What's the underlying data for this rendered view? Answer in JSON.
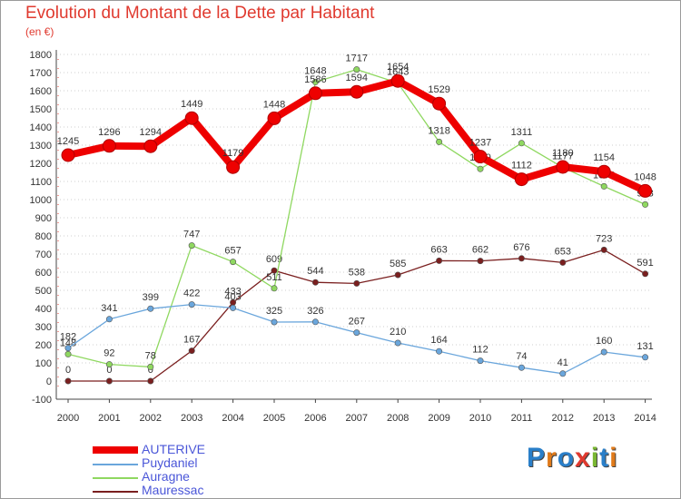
{
  "title": "Evolution du Montant de la Dette par Habitant",
  "unit_label": "(en €)",
  "logo": "Proxiti",
  "colors": {
    "title": "#e03a2f",
    "legend_text": "#4a56d8",
    "axis": "#444444",
    "grid": "#cfcfcf",
    "logo_letters": [
      "#2a7fc9",
      "#e07a1a",
      "#2a7fc9",
      "#e03a2f",
      "#7ab733",
      "#2a7fc9",
      "#e07a1a"
    ]
  },
  "chart_data": {
    "type": "line",
    "x": [
      "2000",
      "2001",
      "2002",
      "2003",
      "2004",
      "2005",
      "2006",
      "2007",
      "2008",
      "2009",
      "2010",
      "2011",
      "2012",
      "2013",
      "2014"
    ],
    "ylim": [
      -100,
      1800
    ],
    "yticks": [
      -100,
      0,
      100,
      200,
      300,
      400,
      500,
      600,
      700,
      800,
      900,
      1000,
      1100,
      1200,
      1300,
      1400,
      1500,
      1600,
      1700,
      1800
    ],
    "grid": "horizontal dashed",
    "legend_position": "bottom-left",
    "series": [
      {
        "name": "Mauressac",
        "color": "#7a1f1f",
        "values": [
          0,
          0,
          0,
          167,
          433,
          609,
          544,
          538,
          585,
          663,
          662,
          676,
          653,
          723,
          591
        ]
      },
      {
        "name": "Auragne",
        "color": "#8fd860",
        "values": [
          148,
          92,
          78,
          747,
          657,
          511,
          1648,
          1717,
          1643,
          1318,
          1169,
          1311,
          1177,
          1073,
          973
        ]
      },
      {
        "name": "Puydaniel",
        "color": "#6aa6dc",
        "values": [
          182,
          341,
          399,
          422,
          403,
          325,
          326,
          267,
          210,
          164,
          112,
          74,
          41,
          160,
          131
        ]
      },
      {
        "name": "AUTERIVE",
        "color": "#ee0000",
        "values": [
          1245,
          1296,
          1294,
          1449,
          1179,
          1448,
          1586,
          1594,
          1654,
          1529,
          1237,
          1112,
          1180,
          1154,
          1048
        ]
      }
    ],
    "legend_order": [
      "AUTERIVE",
      "Puydaniel",
      "Auragne",
      "Mauressac"
    ]
  }
}
